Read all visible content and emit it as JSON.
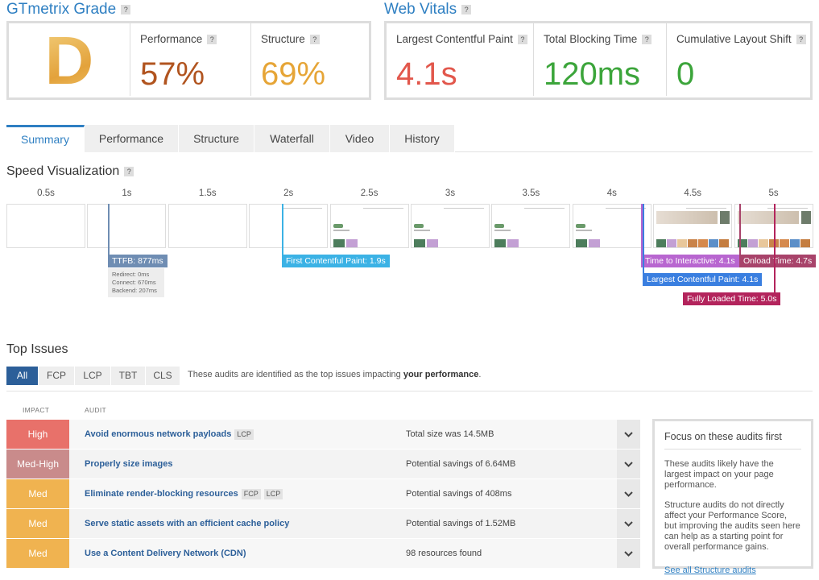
{
  "help": "?",
  "grade": {
    "title": "GTmetrix Grade",
    "letter": "D",
    "metrics": [
      {
        "label": "Performance",
        "value": "57%"
      },
      {
        "label": "Structure",
        "value": "69%"
      }
    ]
  },
  "web_vitals": {
    "title": "Web Vitals",
    "metrics": [
      {
        "label": "Largest Contentful Paint",
        "value": "4.1s"
      },
      {
        "label": "Total Blocking Time",
        "value": "120ms"
      },
      {
        "label": "Cumulative Layout Shift",
        "value": "0"
      }
    ]
  },
  "tabs": [
    "Summary",
    "Performance",
    "Structure",
    "Waterfall",
    "Video",
    "History"
  ],
  "speed": {
    "title": "Speed Visualization",
    "times": [
      "0.5s",
      "1s",
      "1.5s",
      "2s",
      "2.5s",
      "3s",
      "3.5s",
      "4s",
      "4.5s",
      "5s"
    ],
    "markers": [
      {
        "label": "TTFB: 877ms"
      },
      {
        "label": "First Contentful Paint: 1.9s"
      },
      {
        "label": "Time to Interactive: 4.1s"
      },
      {
        "label": "Onload Time: 4.7s"
      },
      {
        "label": "Largest Contentful Paint: 4.1s"
      },
      {
        "label": "Fully Loaded Time: 5.0s"
      }
    ],
    "ttfb_details": [
      "Redirect: 0ms",
      "Connect: 670ms",
      "Backend: 207ms"
    ]
  },
  "top_issues": {
    "title": "Top Issues",
    "filters": [
      "All",
      "FCP",
      "LCP",
      "TBT",
      "CLS"
    ],
    "note": [
      "These audits are identified as the top issues impacting ",
      "your performance",
      "."
    ],
    "columns": [
      "IMPACT",
      "AUDIT"
    ],
    "rows": [
      {
        "impact": "High",
        "audit": "Avoid enormous network payloads",
        "tags": [
          "LCP"
        ],
        "result": "Total size was 14.5MB"
      },
      {
        "impact": "Med-High",
        "audit": "Properly size images",
        "tags": [],
        "result": "Potential savings of 6.64MB"
      },
      {
        "impact": "Med",
        "audit": "Eliminate render-blocking resources",
        "tags": [
          "FCP",
          "LCP"
        ],
        "result": "Potential savings of 408ms"
      },
      {
        "impact": "Med",
        "audit": "Serve static assets with an efficient cache policy",
        "tags": [],
        "result": "Potential savings of 1.52MB"
      },
      {
        "impact": "Med",
        "audit": "Use a Content Delivery Network (CDN)",
        "tags": [],
        "result": "98 resources found"
      }
    ]
  },
  "sidebar": {
    "title": "Focus on these audits first",
    "paragraphs": [
      "These audits likely have the largest impact on your page performance.",
      "Structure audits do not directly affect your Performance Score, but improving the audits seen here can help as a starting point for overall performance gains."
    ],
    "link": "See all Structure audits"
  }
}
